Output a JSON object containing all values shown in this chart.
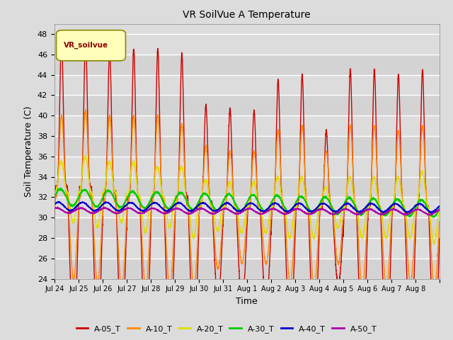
{
  "title": "VR SoilVue A Temperature",
  "xlabel": "Time",
  "ylabel": "Soil Temperature (C)",
  "ylim": [
    24,
    49
  ],
  "yticks": [
    24,
    26,
    28,
    30,
    32,
    34,
    36,
    38,
    40,
    42,
    44,
    46,
    48
  ],
  "bg_color": "#dcdcdc",
  "plot_bg_color": "#dcdcdc",
  "legend_label": "VR_soilvue",
  "series_colors": {
    "A-05_T": "#cc0000",
    "A-10_T": "#ff8800",
    "A-20_T": "#dddd00",
    "A-30_T": "#00cc00",
    "A-40_T": "#0000cc",
    "A-50_T": "#aa00aa"
  },
  "series_lw": 1.0,
  "xtick_labels": [
    "Jul 24",
    "Jul 25",
    "Jul 26",
    "Jul 27",
    "Jul 28",
    "Jul 29",
    "Jul 30",
    "Jul 31",
    "Aug 1",
    "Aug 2",
    "Aug 3",
    "Aug 4",
    "Aug 5",
    "Aug 6",
    "Aug 7",
    "Aug 8"
  ],
  "n_days": 16,
  "pts_per_day": 288
}
